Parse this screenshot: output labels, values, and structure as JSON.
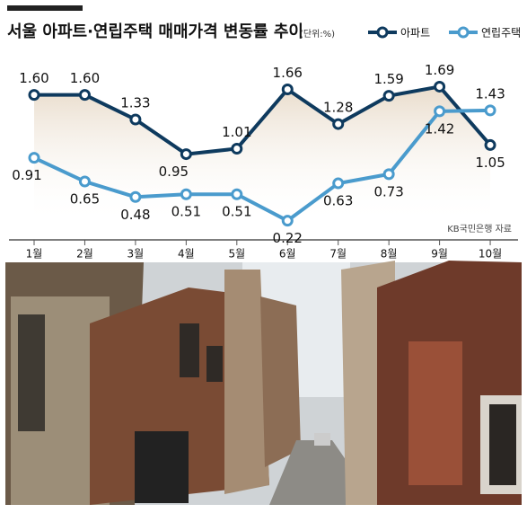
{
  "chart_data": {
    "type": "line",
    "title": "서울 아파트·연립주택 매매가격 변동률 추이",
    "unit": "(단위:%)",
    "source": "KB국민은행 자료",
    "categories": [
      "1월",
      "2월",
      "3월",
      "4월",
      "5월",
      "6월",
      "7월",
      "8월",
      "9월",
      "10월"
    ],
    "series": [
      {
        "name": "아파트",
        "color": "#0e3a5e",
        "values": [
          1.6,
          1.6,
          1.33,
          0.95,
          1.01,
          1.66,
          1.28,
          1.59,
          1.69,
          1.05
        ],
        "value_labels": [
          "1.60",
          "1.60",
          "1.33",
          "0.95",
          "1.01",
          "1.66",
          "1.28",
          "1.59",
          "1.69",
          "1.05"
        ]
      },
      {
        "name": "연립주택",
        "color": "#4a9bcd",
        "values": [
          0.91,
          0.65,
          0.48,
          0.51,
          0.51,
          0.22,
          0.63,
          0.73,
          1.42,
          1.43
        ],
        "value_labels": [
          "0.91",
          "0.65",
          "0.48",
          "0.51",
          "0.51",
          "0.22",
          "0.63",
          "0.73",
          "1.42",
          "1.43"
        ]
      }
    ],
    "legend": "upper right"
  }
}
